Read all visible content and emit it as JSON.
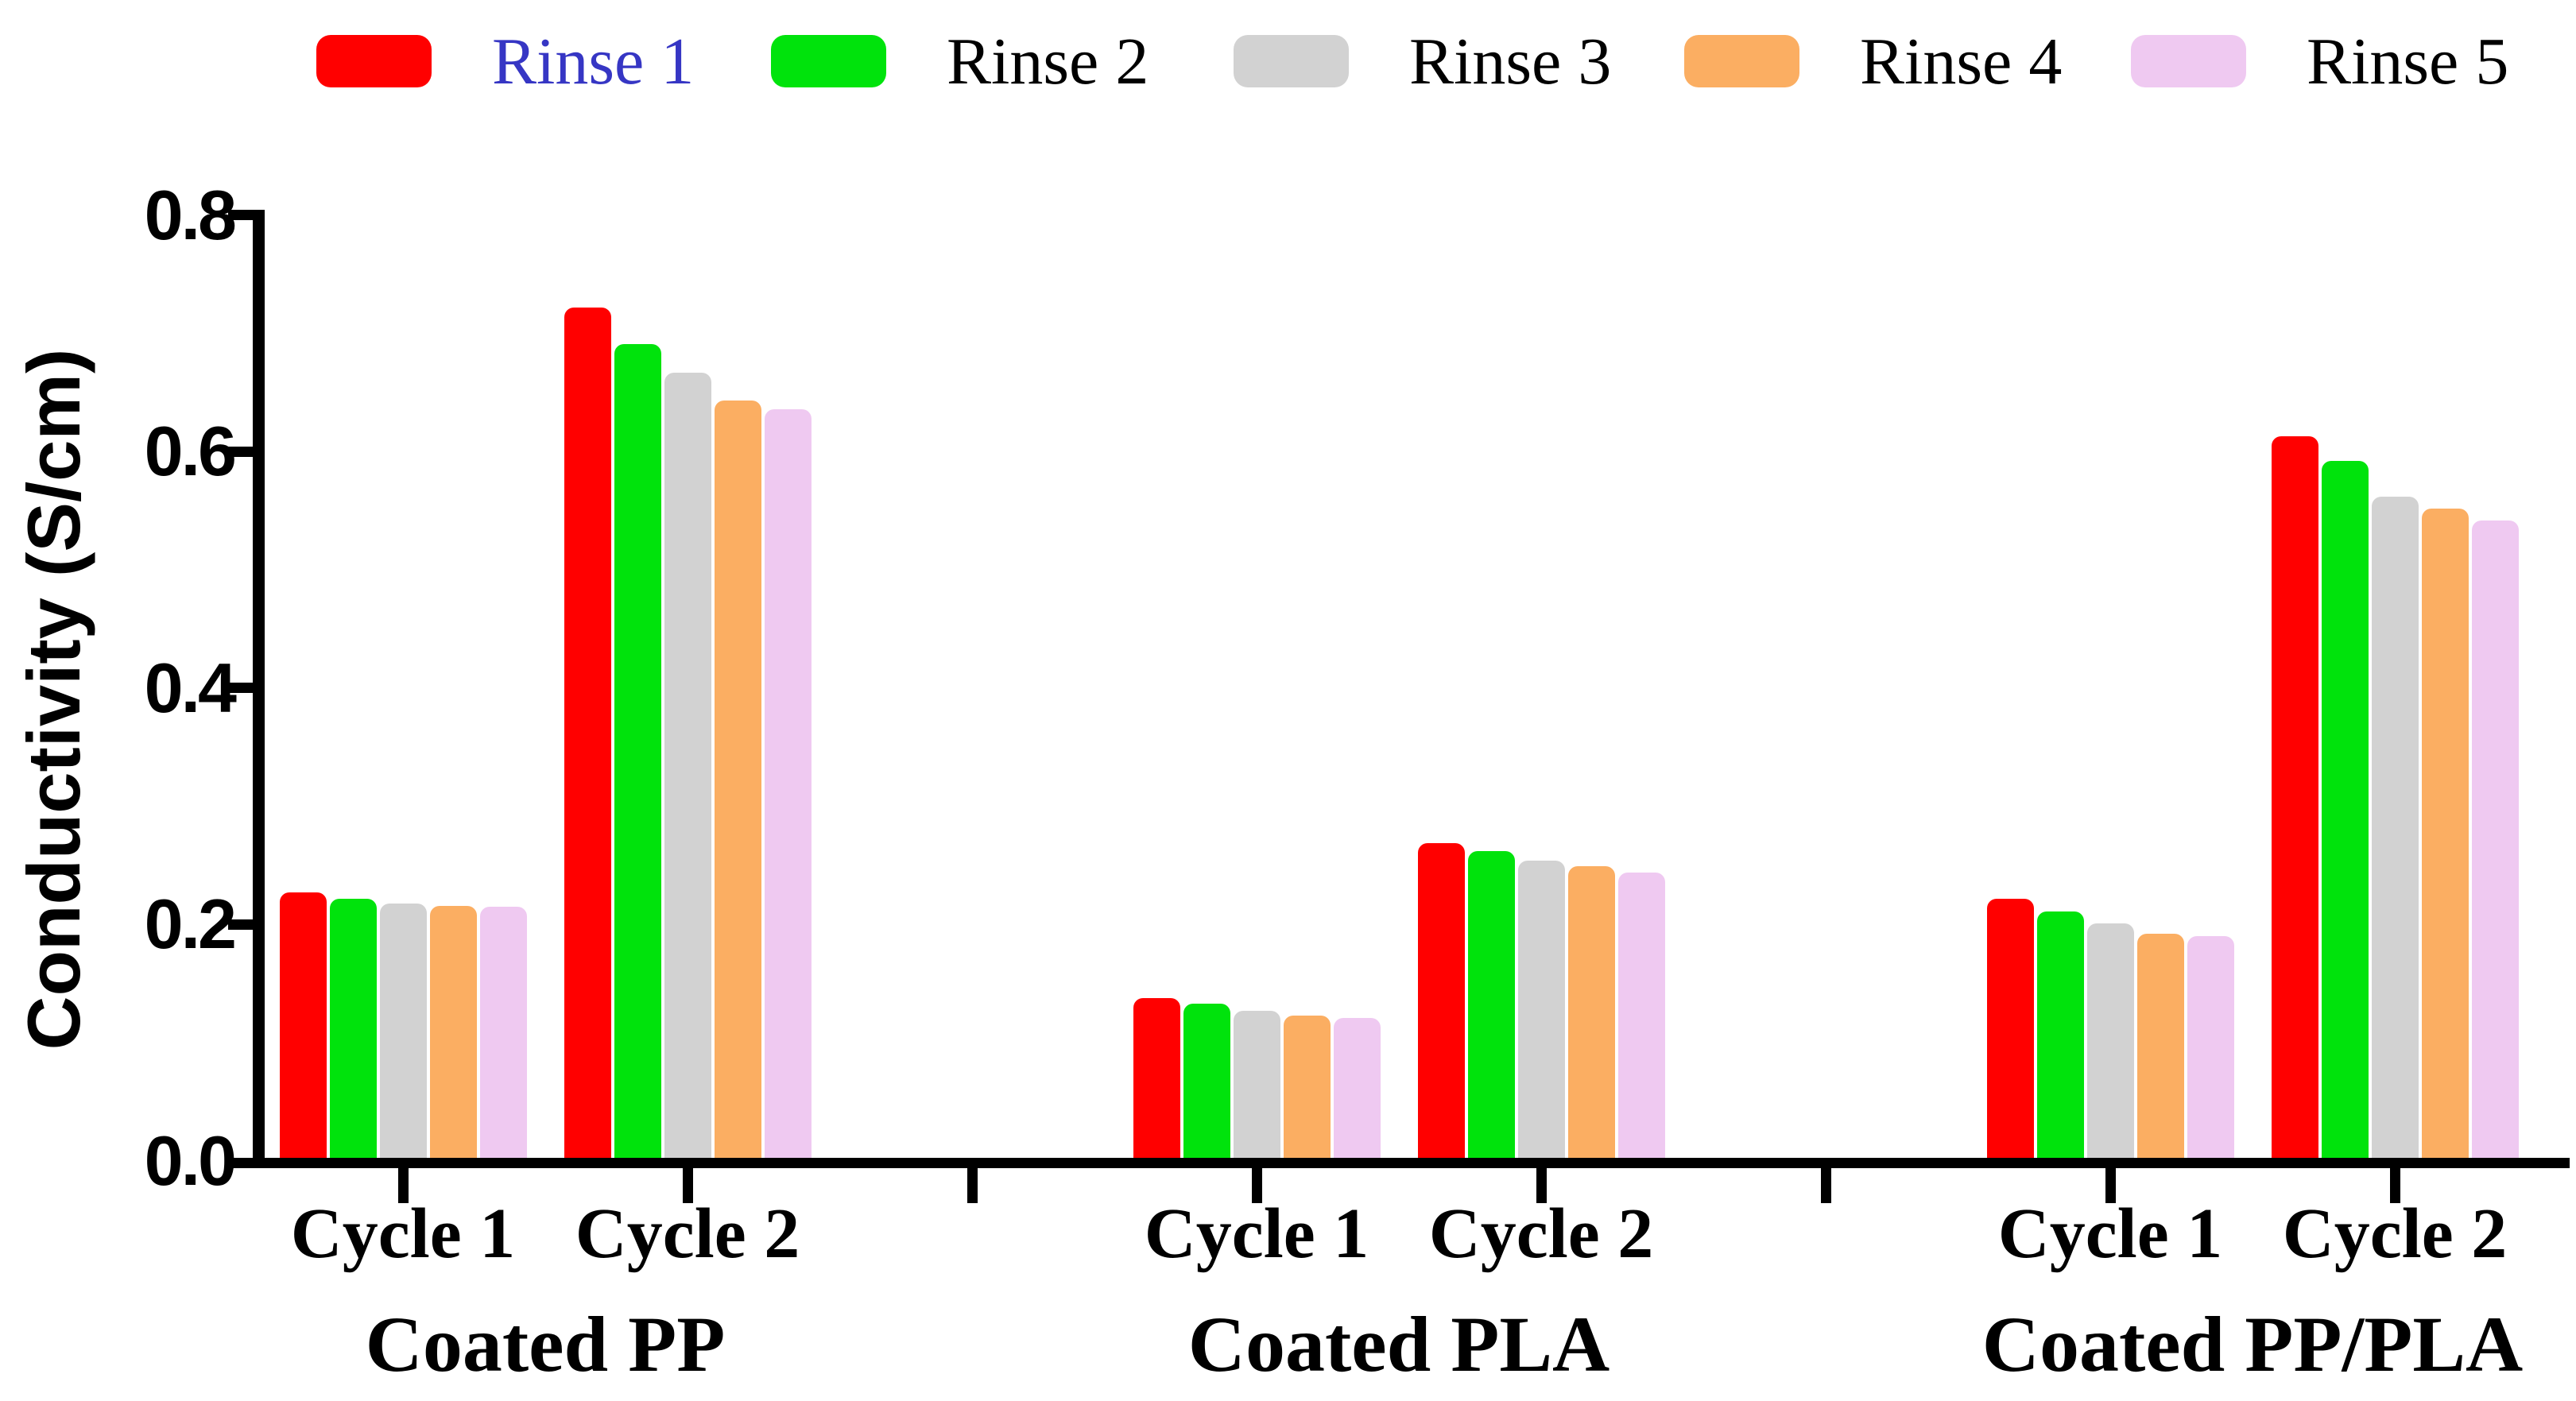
{
  "figure": {
    "background": "#FFFFFF",
    "axis_color": "#000000"
  },
  "chart_data": {
    "type": "bar",
    "title": "",
    "xlabel": "",
    "ylabel": "Conductivity (S/cm)",
    "ylim": [
      0,
      0.8
    ],
    "ytick_labels": [
      "0.0",
      "0.2",
      "0.4",
      "0.6",
      "0.8"
    ],
    "grid": false,
    "legend_position": "top",
    "series": [
      {
        "name": "Rinse 1",
        "color": "#FF0000",
        "label_color": "#3636C4"
      },
      {
        "name": "Rinse 2",
        "color": "#00E30C",
        "label_color": "#000000"
      },
      {
        "name": "Rinse 3",
        "color": "#D2D2D2",
        "label_color": "#000000"
      },
      {
        "name": "Rinse 4",
        "color": "#FBAE62",
        "label_color": "#000000"
      },
      {
        "name": "Rinse 5",
        "color": "#EFC9F1",
        "label_color": "#000000"
      }
    ],
    "groups": [
      {
        "label": "Coated PP",
        "clusters": [
          {
            "label": "Cycle 1",
            "values": [
              0.227,
              0.222,
              0.218,
              0.216,
              0.215
            ]
          },
          {
            "label": "Cycle 2",
            "values": [
              0.722,
              0.691,
              0.667,
              0.643,
              0.636
            ]
          }
        ]
      },
      {
        "label": "Coated PLA",
        "clusters": [
          {
            "label": "Cycle 1",
            "values": [
              0.138,
              0.133,
              0.127,
              0.123,
              0.121
            ]
          },
          {
            "label": "Cycle 2",
            "values": [
              0.269,
              0.262,
              0.254,
              0.249,
              0.244
            ]
          }
        ]
      },
      {
        "label": "Coated PP/PLA",
        "clusters": [
          {
            "label": "Cycle 1",
            "values": [
              0.222,
              0.211,
              0.201,
              0.192,
              0.19
            ]
          },
          {
            "label": "Cycle 2",
            "values": [
              0.613,
              0.592,
              0.562,
              0.552,
              0.542
            ]
          }
        ]
      }
    ]
  }
}
